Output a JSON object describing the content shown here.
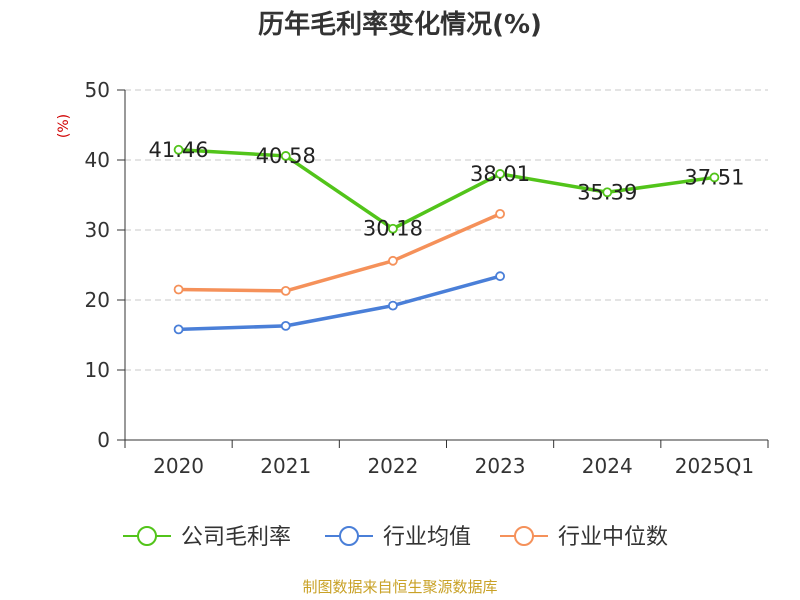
{
  "title": "历年毛利率变化情况(%)",
  "source_note": "制图数据来自恒生聚源数据库",
  "chart_data": {
    "type": "line",
    "title": "历年毛利率变化情况(%)",
    "ylabel": "(%)",
    "xlabel": "",
    "categories": [
      "2020",
      "2021",
      "2022",
      "2023",
      "2024",
      "2025Q1"
    ],
    "ylim": [
      0,
      50
    ],
    "yticks": [
      0,
      10,
      20,
      30,
      40,
      50
    ],
    "grid": true,
    "legend_position": "bottom",
    "series": [
      {
        "name": "公司毛利率",
        "color": "#52c41a",
        "values": [
          41.46,
          40.58,
          30.18,
          38.01,
          35.39,
          37.51
        ],
        "labels": [
          "41.46",
          "40.58",
          "30.18",
          "38.01",
          "35.39",
          "37.51"
        ]
      },
      {
        "name": "行业均值",
        "color": "#4a7fd8",
        "values": [
          15.8,
          16.3,
          19.2,
          23.4,
          null,
          null
        ]
      },
      {
        "name": "行业中位数",
        "color": "#f5915a",
        "values": [
          21.5,
          21.3,
          25.6,
          32.3,
          null,
          null
        ]
      }
    ]
  }
}
